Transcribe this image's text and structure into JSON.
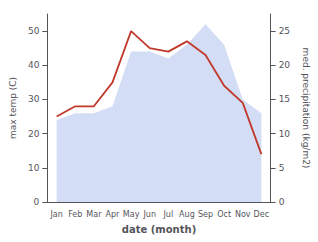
{
  "chart_data": {
    "type": "line",
    "categories": [
      "Jan",
      "Feb",
      "Mar",
      "Apr",
      "May",
      "Jun",
      "Jul",
      "Aug",
      "Sep",
      "Oct",
      "Nov",
      "Dec"
    ],
    "series": [
      {
        "type": "area",
        "axis": "y2",
        "color": "#aabbee",
        "values": [
          12,
          13,
          13,
          14,
          22,
          22,
          21,
          23,
          26,
          23,
          15,
          13
        ]
      },
      {
        "type": "line",
        "color": "#c0392b",
        "values": [
          25,
          28,
          28,
          35,
          50,
          45,
          44,
          47,
          43,
          34,
          29,
          14
        ]
      }
    ],
    "xlabel": "date (month)",
    "ylabel": "max temp (C)",
    "y2label": "med. precipitation (kg/m2)",
    "ylim": [
      0,
      55
    ],
    "yticks": [
      0,
      10,
      20,
      30,
      40,
      50
    ],
    "y2lim": [
      0,
      27.5
    ],
    "y2ticks": [
      0,
      5,
      10,
      15,
      20,
      25
    ],
    "grid": false
  }
}
